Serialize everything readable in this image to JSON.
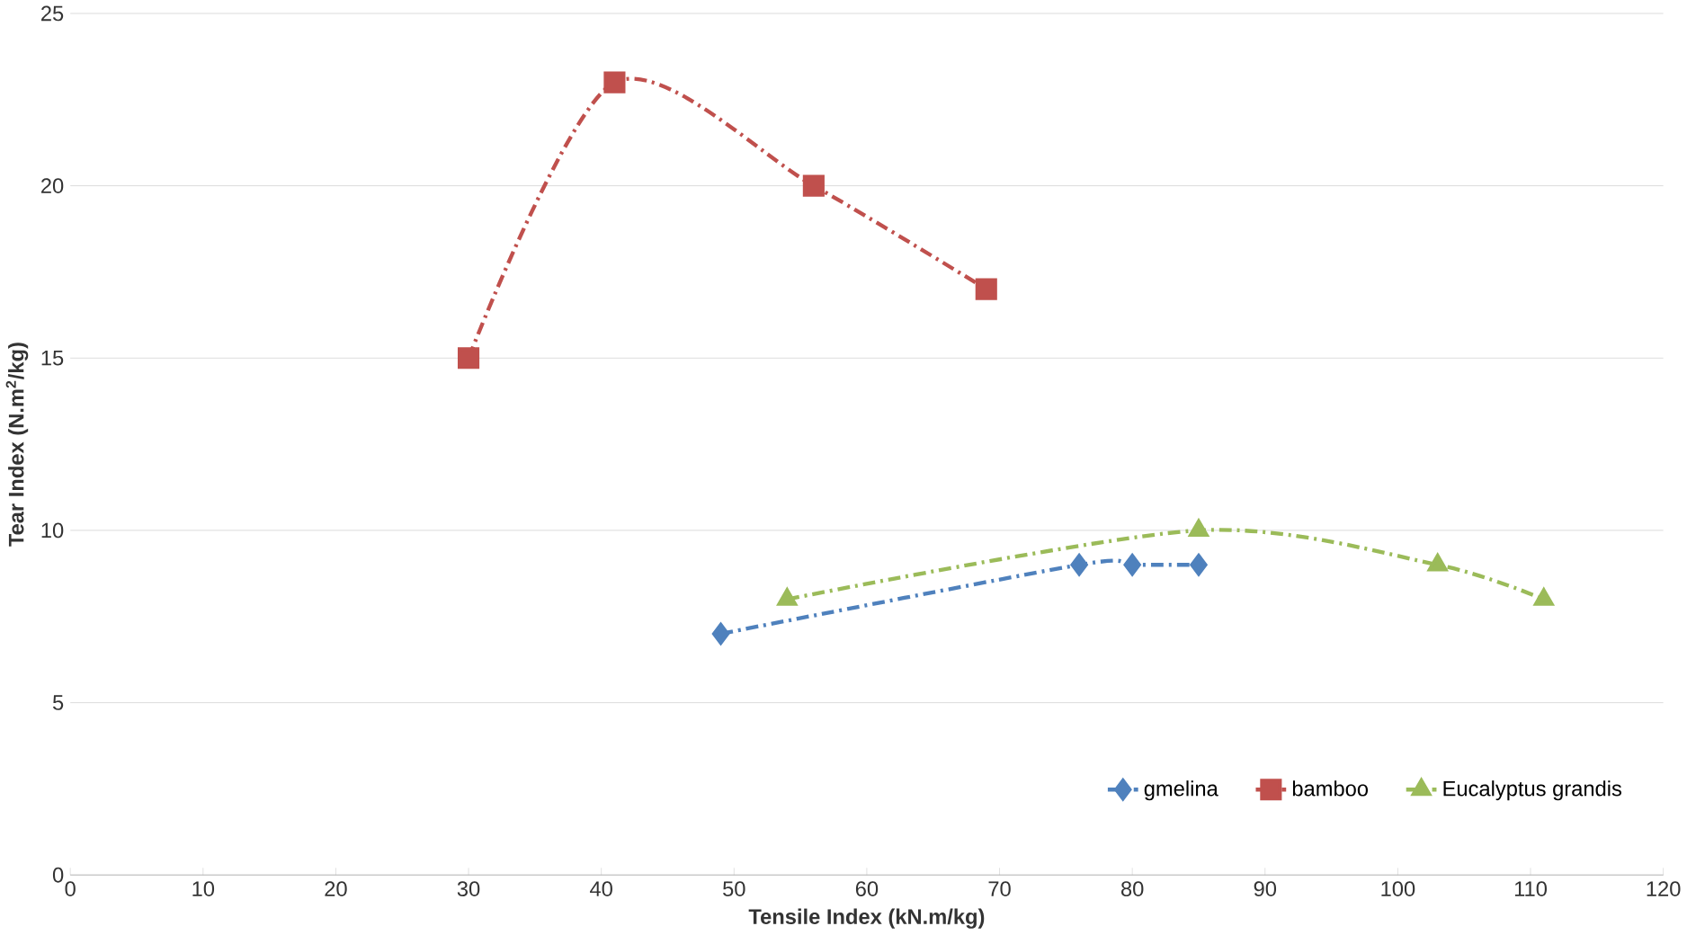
{
  "chart_data": {
    "type": "line",
    "xlabel": "Tensile Index (kN.m/kg)",
    "ylabel": "Tear Index (N.m$^{2}$/kg)",
    "xlim": [
      0,
      120
    ],
    "xticks": [
      0,
      10,
      20,
      30,
      40,
      50,
      60,
      70,
      80,
      90,
      100,
      110,
      120
    ],
    "ylim": [
      0,
      25
    ],
    "yticks": [
      0,
      5,
      10,
      15,
      20,
      25
    ],
    "grid": "y",
    "legend": "bottom right",
    "line_style": "dashed",
    "series": [
      {
        "name": "gmelina",
        "color": "#4f81bd",
        "marker": "diamond",
        "x": [
          49,
          76,
          80,
          85
        ],
        "values": [
          7,
          9,
          9,
          9
        ]
      },
      {
        "name": "bamboo",
        "color": "#c0504d",
        "marker": "square",
        "x": [
          30,
          41,
          56,
          69
        ],
        "values": [
          15,
          23,
          20,
          17
        ]
      },
      {
        "name": "Eucalyptus grandis",
        "color": "#9bbb59",
        "marker": "triangle",
        "x": [
          54,
          85,
          103,
          111
        ],
        "values": [
          8,
          10,
          9,
          8
        ]
      }
    ]
  }
}
